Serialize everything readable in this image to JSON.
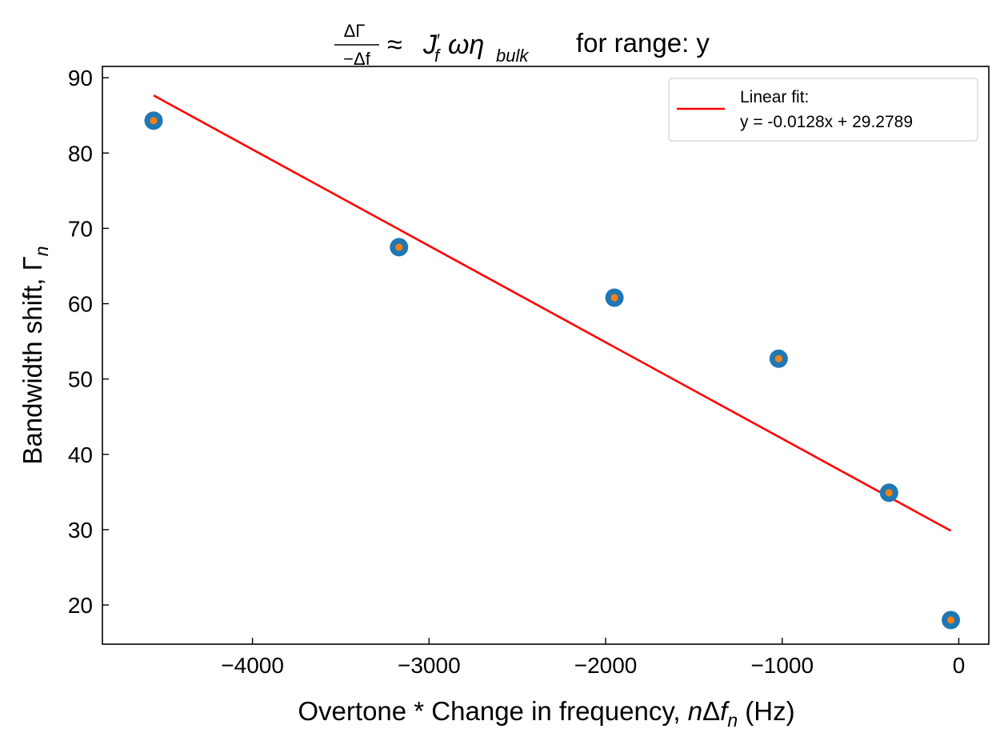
{
  "chart_data": {
    "type": "scatter",
    "title": {
      "fraction_numerator": "ΔΓ",
      "fraction_denominator": "−Δf",
      "approx": "≈",
      "J": "J",
      "J_prime": "′",
      "J_sub": "f",
      "omega_eta": "ωη",
      "eta_sub": "bulk",
      "suffix": "for range: y"
    },
    "xlabel": {
      "prefix": "Overtone * Change in frequency, ",
      "n": "n",
      "delta": "Δ",
      "f": "f",
      "sub": "n",
      "suffix": " (Hz)"
    },
    "ylabel": {
      "prefix": "Bandwidth shift, ",
      "gamma": "Γ",
      "sub": "n"
    },
    "xlim": [
      -4850,
      170
    ],
    "ylim": [
      14.8,
      91.5
    ],
    "xticks": [
      -4000,
      -3000,
      -2000,
      -1000,
      0
    ],
    "xtick_labels": [
      "−4000",
      "−3000",
      "−2000",
      "−1000",
      "0"
    ],
    "yticks": [
      20,
      30,
      40,
      50,
      60,
      70,
      80,
      90
    ],
    "ytick_labels": [
      "20",
      "30",
      "40",
      "50",
      "60",
      "70",
      "80",
      "90"
    ],
    "series": [
      {
        "marker_color": "#1f77b4",
        "inner_color": "#ff7f0e",
        "points": [
          {
            "x": -4560,
            "y": 84.3
          },
          {
            "x": -3170,
            "y": 67.5
          },
          {
            "x": -1950,
            "y": 60.8
          },
          {
            "x": -1020,
            "y": 52.7
          },
          {
            "x": -395,
            "y": 34.9
          },
          {
            "x": -45,
            "y": 18.0
          }
        ]
      },
      {
        "name": "Linear fit:",
        "equation": "y = -0.0128x + 29.2789",
        "color": "#ff0000",
        "slope": -0.0128,
        "intercept": 29.2789,
        "x_range": [
          -4560,
          -45
        ]
      }
    ],
    "legend_position": "top-right",
    "grid": false
  }
}
